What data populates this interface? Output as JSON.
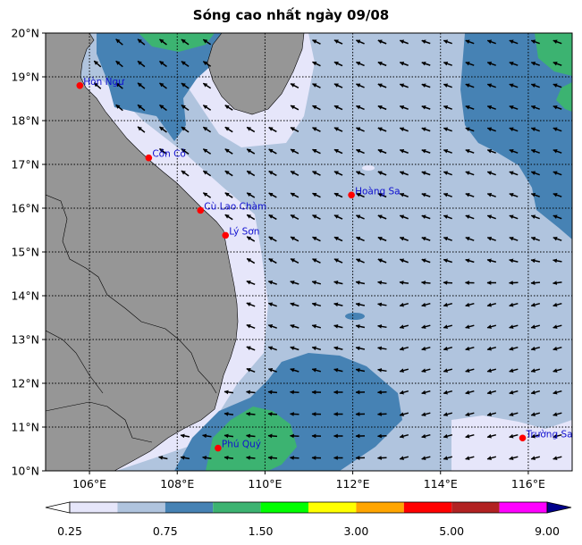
{
  "title": "Sóng cao nhất ngày 09/08",
  "map": {
    "lon_range": [
      105,
      117
    ],
    "lat_range": [
      10,
      20
    ],
    "lon_ticks": [
      "106°E",
      "108°E",
      "110°E",
      "112°E",
      "114°E",
      "116°E"
    ],
    "lon_tick_values": [
      106,
      108,
      110,
      112,
      114,
      116
    ],
    "lat_ticks": [
      "10°N",
      "11°N",
      "12°N",
      "13°N",
      "14°N",
      "15°N",
      "16°N",
      "17°N",
      "18°N",
      "19°N",
      "20°N"
    ],
    "lat_tick_values": [
      10,
      11,
      12,
      13,
      14,
      15,
      16,
      17,
      18,
      19,
      20
    ],
    "land_color": "#969696",
    "gridlines": "dotted",
    "stations": [
      {
        "name": "Hòn Ngư",
        "lon": 105.78,
        "lat": 18.8
      },
      {
        "name": "Cồn Cỏ",
        "lon": 107.35,
        "lat": 17.15
      },
      {
        "name": "Cù Lao Chàm",
        "lon": 108.53,
        "lat": 15.95
      },
      {
        "name": "Lý Sơn",
        "lon": 109.1,
        "lat": 15.38
      },
      {
        "name": "Hoàng Sa",
        "lon": 111.97,
        "lat": 16.3
      },
      {
        "name": "Phú Quý",
        "lon": 108.93,
        "lat": 10.52
      },
      {
        "name": "Trường Sa",
        "lon": 115.87,
        "lat": 10.75
      }
    ]
  },
  "colorbar": {
    "levels": [
      0.25,
      0.5,
      0.75,
      1.0,
      1.5,
      2.0,
      3.0,
      4.0,
      5.0,
      7.0,
      9.0
    ],
    "colors": [
      "#e6e6fa",
      "#b0c4de",
      "#4682b4",
      "#3cb371",
      "#00ff00",
      "#ffff00",
      "#ffa500",
      "#ff0000",
      "#b22222",
      "#ff00ff"
    ],
    "under_color": "#ffffff",
    "over_color": "#00008b",
    "tick_labels": [
      "0.25",
      "0.75",
      "1.50",
      "3.00",
      "5.00",
      "9.00"
    ]
  }
}
